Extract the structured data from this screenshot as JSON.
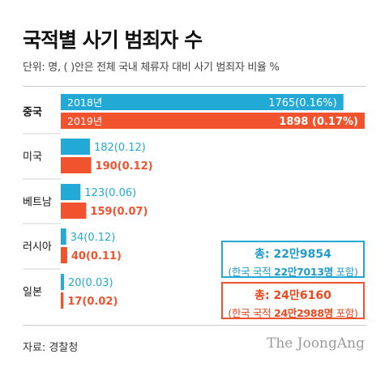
{
  "header": {
    "title": "국적별 사기 범죄자 수",
    "subtitle": "단위: 명, ( )안은 전체 국내 체류자 대비 사기 범죄자 비율 %"
  },
  "colors": {
    "y2018": "#22a9d6",
    "y2019": "#f0532d",
    "inner_label": "#ffffff"
  },
  "chart_data": {
    "type": "bar",
    "orientation": "horizontal",
    "categories": [
      "중국",
      "미국",
      "베트남",
      "러시아",
      "일본"
    ],
    "series": [
      {
        "name": "2018년",
        "values": [
          1765,
          182,
          123,
          34,
          20
        ],
        "labels": [
          "1765(0.16%)",
          "182(0.12)",
          "123(0.06)",
          "34(0.12)",
          "20(0.03)"
        ]
      },
      {
        "name": "2019년",
        "values": [
          1898,
          190,
          159,
          40,
          17
        ],
        "labels": [
          "1898 (0.17%)",
          "190(0.12)",
          "159(0.07)",
          "40(0.11)",
          "17(0.02)"
        ]
      }
    ],
    "xlim": [
      0,
      1898
    ],
    "grid": false,
    "legend": "inside-bars"
  },
  "totals": {
    "y2018": {
      "label": "총:",
      "total": "22만9854",
      "detail_prefix": "(한국 국적 ",
      "detail_value": "22만7013명",
      "detail_suffix": " 포함)"
    },
    "y2019": {
      "label": "총:",
      "total": "24만6160",
      "detail_prefix": "(한국 국적 ",
      "detail_value": "24만2988명",
      "detail_suffix": " 포함)"
    }
  },
  "footer": {
    "source": "자료: 경찰청",
    "brand": "The JoongAng"
  }
}
